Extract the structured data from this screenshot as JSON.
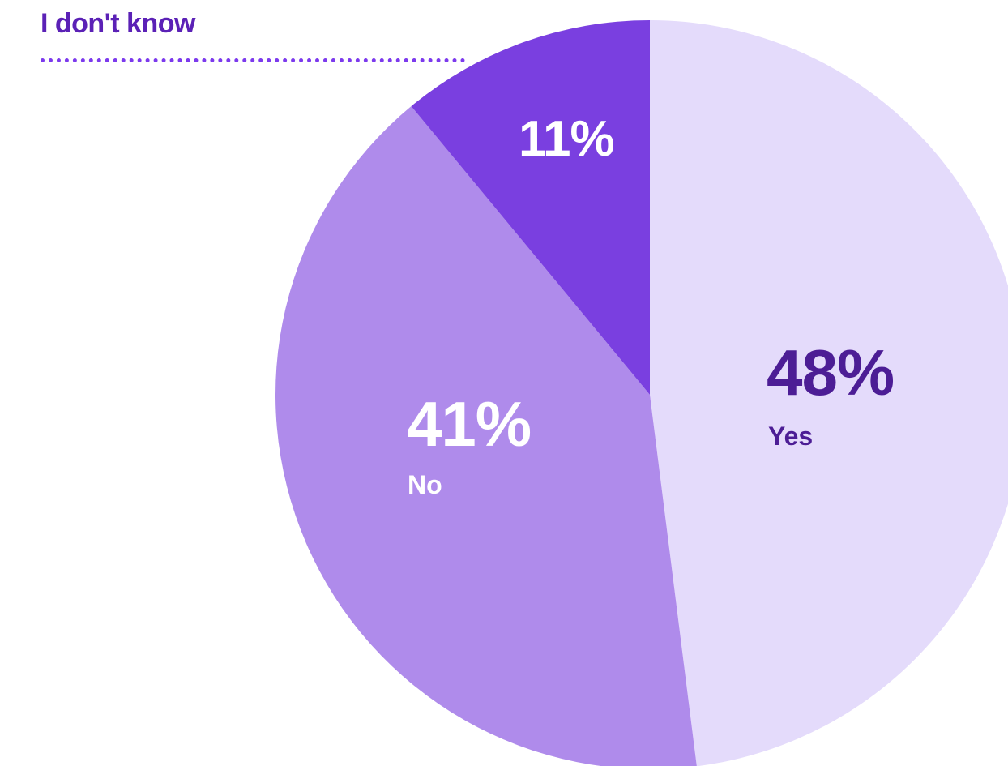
{
  "chart_data": {
    "type": "pie",
    "slices": [
      {
        "label": "Yes",
        "value": 48,
        "value_label": "48%",
        "color": "#e4dbfb",
        "text_color": "#4c1d95"
      },
      {
        "label": "No",
        "value": 41,
        "value_label": "41%",
        "color": "#af8beb",
        "text_color": "#ffffff"
      },
      {
        "label": "I don't know",
        "value": 11,
        "value_label": "11%",
        "color": "#7a3fe0",
        "text_color": "#ffffff"
      }
    ],
    "start": "top, clockwise",
    "legend": "callout for smallest slice at top-left"
  }
}
